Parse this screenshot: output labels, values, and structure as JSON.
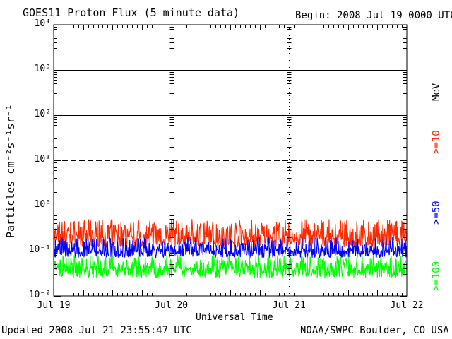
{
  "header": {
    "title": "GOES11 Proton Flux (5 minute data)",
    "begin": "Begin: 2008 Jul 19 0000 UTC"
  },
  "footer": {
    "updated": "Updated 2008 Jul 21 23:55:47 UTC",
    "credit": "NOAA/SWPC Boulder, CO USA"
  },
  "colors": {
    "ge10": "#ff2a00",
    "ge50": "#0000ff",
    "ge100": "#00ff00"
  },
  "chart_data": {
    "type": "line",
    "title": "GOES11 Proton Flux (5 minute data)",
    "xlabel": "Universal Time",
    "ylabel": "Particles cm⁻²s⁻¹sr⁻¹",
    "yscale": "log",
    "ylim": [
      0.01,
      10000
    ],
    "yticks": [
      "10⁻²",
      "10⁻¹",
      "10⁰",
      "10¹",
      "10²",
      "10³",
      "10⁴"
    ],
    "xlim": [
      "2008-07-19",
      "2008-07-22"
    ],
    "xticks": [
      "Jul 19",
      "Jul 20",
      "Jul 21",
      "Jul 22"
    ],
    "energy_unit": "MeV",
    "series": [
      {
        "name": ">=10",
        "color": "#ff2a00",
        "typical": 0.2,
        "min": 0.12,
        "max": 0.5
      },
      {
        "name": ">=50",
        "color": "#0000ff",
        "typical": 0.1,
        "min": 0.07,
        "max": 0.2
      },
      {
        "name": ">=100",
        "color": "#00ff00",
        "typical": 0.04,
        "min": 0.025,
        "max": 0.08
      }
    ]
  }
}
